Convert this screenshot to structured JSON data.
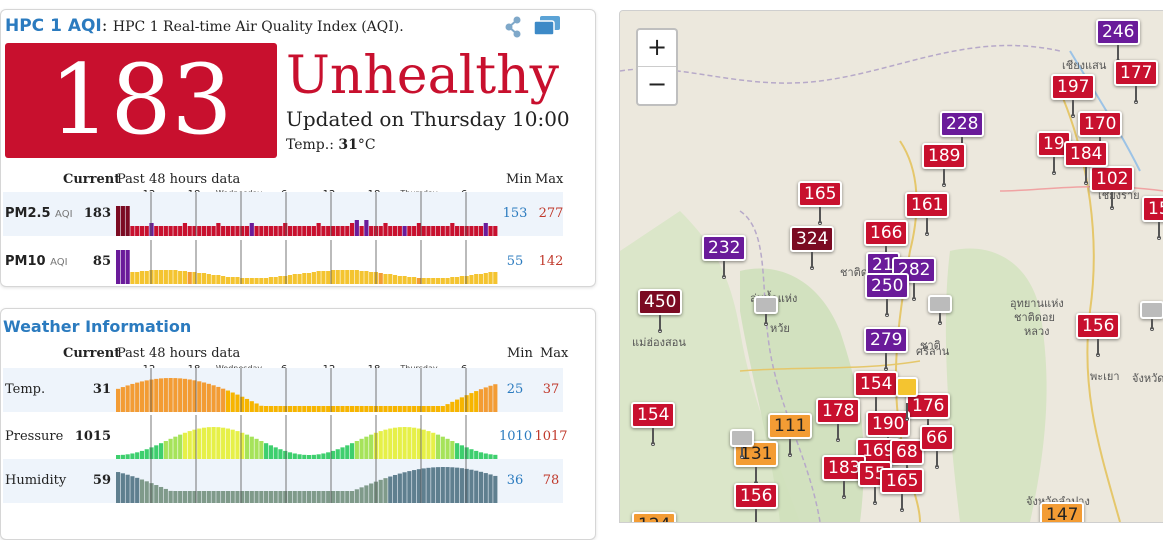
{
  "aqi_panel": {
    "title": "HPC 1 AQI",
    "colon": ":",
    "subtitle": "HPC 1 Real-time Air Quality Index (AQI).",
    "aqi_value": "183",
    "status": "Unhealthy",
    "updated": "Updated on Thursday 10:00",
    "temp_label": "Temp.:",
    "temp_value": "31",
    "temp_unit": "°C",
    "header_current": "Current",
    "header_past": "Past 48 hours data",
    "header_min": "Min",
    "header_max": "Max",
    "ticks": [
      "12",
      "18",
      "Wednesday",
      "6",
      "12",
      "18",
      "Thursday",
      "6"
    ],
    "rows": [
      {
        "label": "PM2.5",
        "sub": "AQI",
        "value": "183",
        "min": "153",
        "max": "277"
      },
      {
        "label": "PM10",
        "sub": "AQI",
        "value": "85",
        "min": "55",
        "max": "142"
      }
    ]
  },
  "weather_panel": {
    "title": "Weather Information",
    "header_current": "Current",
    "header_past": "Past 48 hours data",
    "header_min": "Min",
    "header_max": "Max",
    "ticks": [
      "12",
      "18",
      "Wednesday",
      "6",
      "12",
      "18",
      "Thursday",
      "6"
    ],
    "rows": [
      {
        "label": "Temp.",
        "value": "31",
        "min": "25",
        "max": "37"
      },
      {
        "label": "Pressure",
        "value": "1015",
        "min": "1010",
        "max": "1017"
      },
      {
        "label": "Humidity",
        "value": "59",
        "min": "36",
        "max": "78"
      }
    ]
  },
  "map": {
    "zoom_in": "+",
    "zoom_out": "−",
    "labels": [
      "ลุ่มน้ำแห่ง",
      "หว้ย",
      "แม่ฮ่องสอน",
      "ชาติดอย",
      "อุทยานแห่ง",
      "ชาติดอย",
      "หลวง",
      "พะเยา",
      "จังหวัด",
      "จังหวัดลำปาง",
      "เชียงราย",
      "เชียงแสน",
      "ชาติ",
      "ศรีลาน"
    ],
    "markers": [
      {
        "v": "246",
        "c": "purple"
      },
      {
        "v": "177",
        "c": "red"
      },
      {
        "v": "197",
        "c": "red"
      },
      {
        "v": "170",
        "c": "red"
      },
      {
        "v": "228",
        "c": "purple"
      },
      {
        "v": "189",
        "c": "red"
      },
      {
        "v": "19",
        "c": "red"
      },
      {
        "v": "184",
        "c": "red"
      },
      {
        "v": "102",
        "c": "red"
      },
      {
        "v": "165",
        "c": "red"
      },
      {
        "v": "161",
        "c": "red"
      },
      {
        "v": "15",
        "c": "red"
      },
      {
        "v": "324",
        "c": "maroon"
      },
      {
        "v": "166",
        "c": "red"
      },
      {
        "v": "232",
        "c": "purple"
      },
      {
        "v": "21",
        "c": "purple"
      },
      {
        "v": "282",
        "c": "purple"
      },
      {
        "v": "250",
        "c": "purple"
      },
      {
        "v": "450",
        "c": "maroon"
      },
      {
        "v": "279",
        "c": "purple"
      },
      {
        "v": "156",
        "c": "red"
      },
      {
        "v": "154",
        "c": "red"
      },
      {
        "v": "154",
        "c": "red"
      },
      {
        "v": "178",
        "c": "red"
      },
      {
        "v": "176",
        "c": "red"
      },
      {
        "v": "190",
        "c": "red"
      },
      {
        "v": "111",
        "c": "orange"
      },
      {
        "v": "131",
        "c": "orange"
      },
      {
        "v": "169",
        "c": "red"
      },
      {
        "v": "68",
        "c": "red"
      },
      {
        "v": "66",
        "c": "red"
      },
      {
        "v": "183",
        "c": "red"
      },
      {
        "v": "55",
        "c": "red"
      },
      {
        "v": "165",
        "c": "red"
      },
      {
        "v": "156",
        "c": "red"
      },
      {
        "v": "147",
        "c": "orange"
      },
      {
        "v": "124",
        "c": "orange"
      },
      {
        "v": "",
        "c": "grey"
      },
      {
        "v": "",
        "c": "grey"
      },
      {
        "v": "",
        "c": "grey"
      },
      {
        "v": "",
        "c": "grey"
      },
      {
        "v": "",
        "c": "yellow"
      }
    ]
  },
  "colors": {
    "unhealthy": "#c8102e",
    "very_unhealthy": "#6a1b9a",
    "hazardous": "#7b0a22",
    "moderate": "#f4c430",
    "sensitive": "#f39c34",
    "link_blue": "#2b7bbf"
  }
}
